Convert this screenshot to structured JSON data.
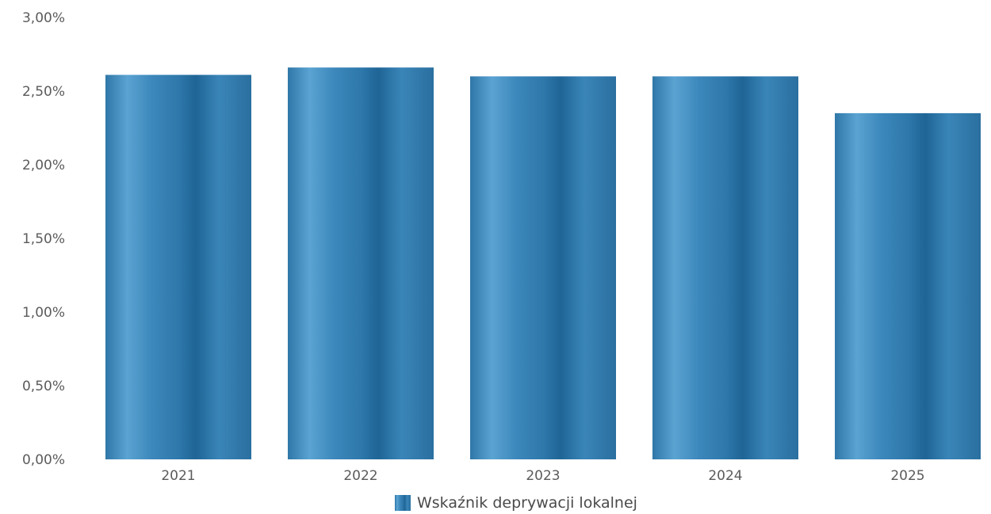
{
  "chart_data": {
    "type": "bar",
    "categories": [
      "2021",
      "2022",
      "2023",
      "2024",
      "2025"
    ],
    "series": [
      {
        "name": "Wskaźnik deprywacji lokalnej",
        "values": [
          2.61,
          2.66,
          2.6,
          2.6,
          2.35
        ],
        "color": "#3a86b8"
      }
    ],
    "ylim": [
      0,
      3
    ],
    "yticks": [
      0,
      0.5,
      1,
      1.5,
      2,
      2.5,
      3
    ],
    "ytick_labels": [
      "0,00%",
      "0,50%",
      "1,00%",
      "1,50%",
      "2,00%",
      "2,50%",
      "3,00%"
    ],
    "grid": false,
    "legend_position": "bottom-center",
    "title": "",
    "xlabel": "",
    "ylabel": ""
  }
}
